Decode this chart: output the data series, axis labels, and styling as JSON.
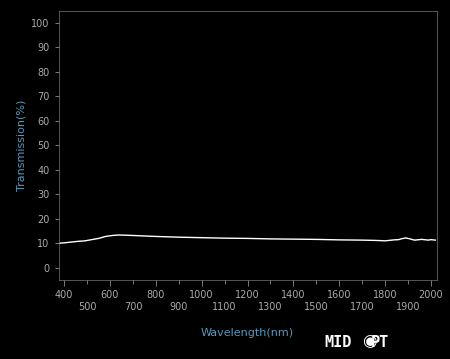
{
  "background_color": "#000000",
  "axes_bg_color": "#000000",
  "tick_color": "#aaaaaa",
  "spine_color": "#777777",
  "label_color": "#5599bb",
  "line_color": "#ffffff",
  "xlabel": "Wavelength(nm)",
  "ylabel": "Transmission(%)",
  "xlim": [
    375,
    2025
  ],
  "ylim": [
    -5,
    105
  ],
  "yticks": [
    0,
    10,
    20,
    30,
    40,
    50,
    60,
    70,
    80,
    90,
    100
  ],
  "xticks_major": [
    400,
    600,
    800,
    1000,
    1200,
    1400,
    1600,
    1800,
    2000
  ],
  "xticks_minor": [
    500,
    700,
    900,
    1100,
    1300,
    1500,
    1700,
    1900
  ],
  "transmission_data": [
    [
      375,
      10.0
    ],
    [
      400,
      10.2
    ],
    [
      430,
      10.5
    ],
    [
      460,
      10.8
    ],
    [
      490,
      11.0
    ],
    [
      520,
      11.5
    ],
    [
      550,
      12.0
    ],
    [
      580,
      12.8
    ],
    [
      610,
      13.2
    ],
    [
      640,
      13.4
    ],
    [
      670,
      13.3
    ],
    [
      700,
      13.2
    ],
    [
      750,
      13.0
    ],
    [
      800,
      12.8
    ],
    [
      900,
      12.5
    ],
    [
      1000,
      12.3
    ],
    [
      1100,
      12.1
    ],
    [
      1200,
      12.0
    ],
    [
      1300,
      11.8
    ],
    [
      1400,
      11.7
    ],
    [
      1500,
      11.6
    ],
    [
      1600,
      11.4
    ],
    [
      1700,
      11.3
    ],
    [
      1750,
      11.2
    ],
    [
      1780,
      11.1
    ],
    [
      1800,
      11.0
    ],
    [
      1820,
      11.2
    ],
    [
      1840,
      11.4
    ],
    [
      1860,
      11.5
    ],
    [
      1870,
      11.8
    ],
    [
      1880,
      12.0
    ],
    [
      1890,
      12.2
    ],
    [
      1900,
      12.0
    ],
    [
      1910,
      11.8
    ],
    [
      1920,
      11.5
    ],
    [
      1930,
      11.3
    ],
    [
      1940,
      11.4
    ],
    [
      1950,
      11.5
    ],
    [
      1960,
      11.6
    ],
    [
      1970,
      11.5
    ],
    [
      1980,
      11.4
    ],
    [
      1990,
      11.3
    ],
    [
      2000,
      11.5
    ],
    [
      2010,
      11.4
    ],
    [
      2020,
      11.3
    ]
  ],
  "midopt_color": "#ffffff",
  "midopt_fontsize": 11,
  "tick_fontsize": 7,
  "label_fontsize": 8
}
